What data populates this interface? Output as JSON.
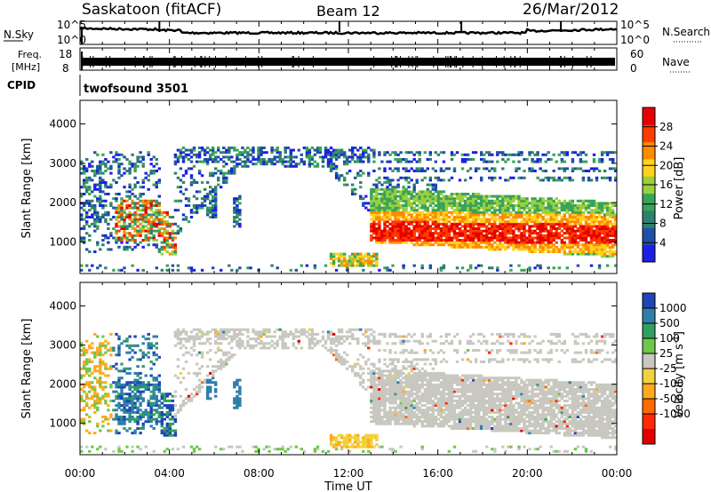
{
  "header": {
    "title": "Saskatoon (fitACF)",
    "beam": "Beam 12",
    "date": "26/Mar/2012"
  },
  "sky_panel": {
    "left_label": "N.Sky",
    "right_label": "N.Search",
    "tick_top": "10^5",
    "tick_bottom": "10^0"
  },
  "freq_panel": {
    "left_label_1": "Freq.",
    "left_label_2": "[MHz]",
    "left_tick_top": "18",
    "left_tick_bottom": "8",
    "right_label": "Nave",
    "right_tick_top": "60",
    "right_tick_bottom": "0"
  },
  "cpid_panel": {
    "label": "CPID",
    "value": "twofsound 3501"
  },
  "colors": {
    "power_scale": [
      "#1e1ee6",
      "#1f4fa8",
      "#2f7f6e",
      "#38a35a",
      "#9ccf3c",
      "#ffd21e",
      "#ff8a00",
      "#ff3c00",
      "#e60000"
    ],
    "velocity_scale": [
      "#1e46b4",
      "#2f7faa",
      "#30a060",
      "#6ec84a",
      "#c8c8c0",
      "#f2d23c",
      "#ffaa1e",
      "#ff6a00",
      "#ff2a00",
      "#e10000"
    ]
  },
  "chart_data": [
    {
      "type": "heatmap",
      "name": "power",
      "ylabel": "Slant Range [km]",
      "yticks": [
        "1000",
        "2000",
        "3000",
        "4000"
      ],
      "ylim": [
        200,
        4600
      ],
      "colorbar_label": "Power [dB]",
      "colorbar_ticks": [
        "4",
        "8",
        "12",
        "16",
        "20",
        "24",
        "28"
      ],
      "colorbar_range": [
        0,
        32
      ]
    },
    {
      "type": "heatmap",
      "name": "velocity",
      "ylabel": "Slant Range [km]",
      "yticks": [
        "1000",
        "2000",
        "3000",
        "4000"
      ],
      "ylim": [
        200,
        4600
      ],
      "colorbar_label": "Velocity [m s",
      "colorbar_label_sup": "-1",
      "colorbar_label_end": "]",
      "colorbar_ticks": [
        "1000",
        "500",
        "100",
        "25",
        "-25",
        "-100",
        "-500",
        "-1000"
      ]
    }
  ],
  "x_axis": {
    "label": "Time UT",
    "ticks": [
      "00:00",
      "04:00",
      "08:00",
      "12:00",
      "16:00",
      "20:00",
      "00:00"
    ]
  }
}
